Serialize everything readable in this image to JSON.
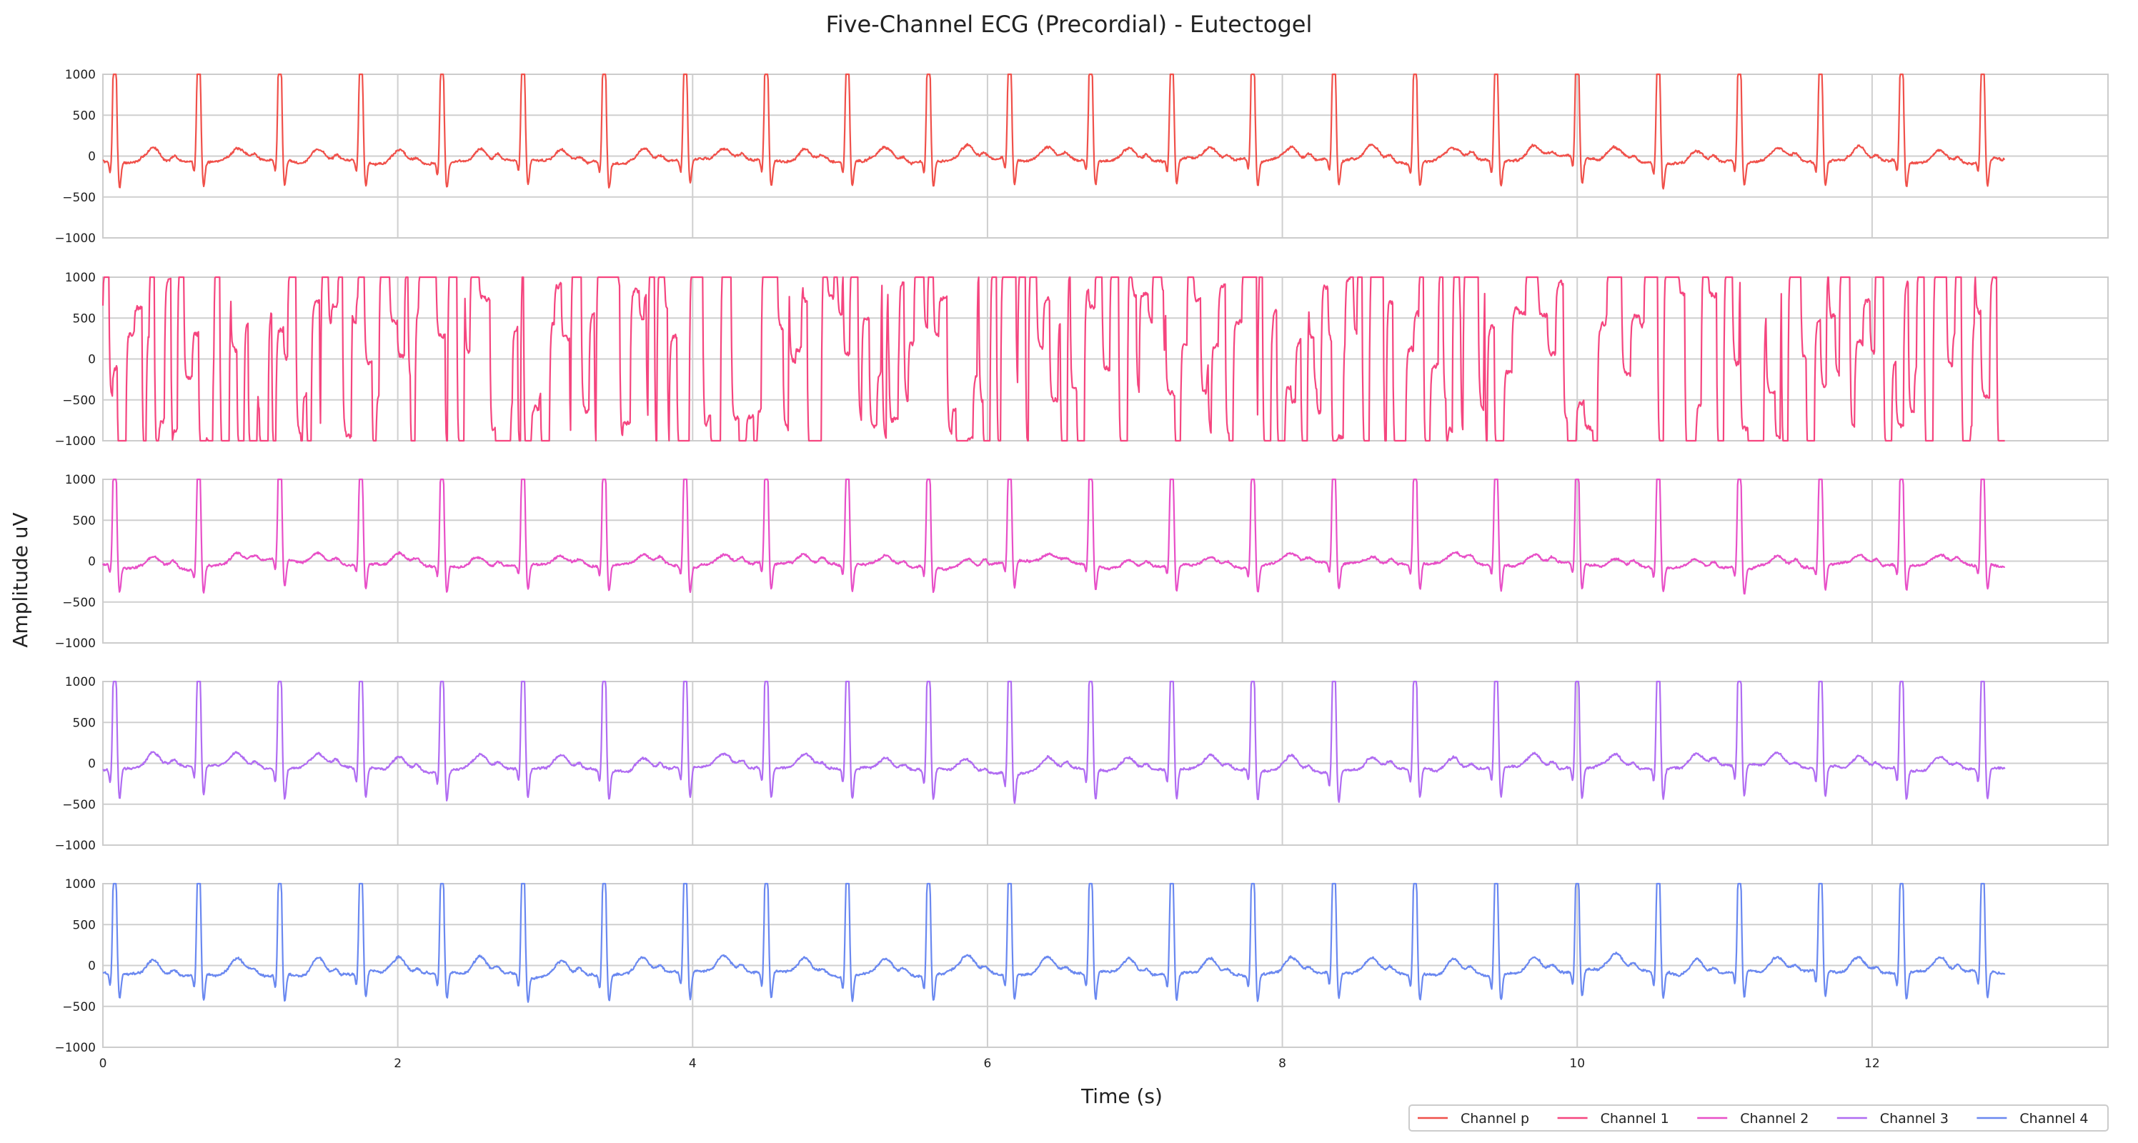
{
  "chart_data": {
    "type": "line",
    "title": "Five-Channel ECG (Precordial) - Eutectogel",
    "xlabel": "Time (s)",
    "ylabel": "Amplitude uV",
    "xlim": [
      0,
      13.6
    ],
    "ylim": [
      -1000,
      1000
    ],
    "x_ticks": [
      0,
      2,
      4,
      6,
      8,
      10,
      12
    ],
    "y_ticks": [
      1000,
      500,
      0,
      -500,
      -1000
    ],
    "x_tick_labels": [
      "0",
      "2",
      "4",
      "6",
      "8",
      "10",
      "12"
    ],
    "y_tick_labels": [
      "1000",
      "500",
      "0",
      "−500",
      "−1000"
    ],
    "grid": true,
    "legend_position": "bottom-right",
    "duration_s": 12.9,
    "beat_times_s": [
      0.08,
      0.65,
      1.2,
      1.75,
      2.3,
      2.85,
      3.4,
      3.95,
      4.5,
      5.05,
      5.6,
      6.15,
      6.7,
      7.25,
      7.8,
      8.35,
      8.9,
      9.45,
      10.0,
      10.55,
      11.1,
      11.65,
      12.2,
      12.75
    ],
    "series": [
      {
        "name": "Channel p",
        "color": "#f0504a",
        "r_peak_uV": 1000,
        "q_uV": -180,
        "s_uV": -320,
        "t_uV": 160,
        "baseline_uV": -60,
        "noise": "low"
      },
      {
        "name": "Channel 1",
        "color": "#f5457f",
        "r_peak_uV": 1000,
        "q_uV": -1000,
        "s_uV": -1000,
        "t_uV": 500,
        "baseline_uV": 0,
        "noise": "high, saturating"
      },
      {
        "name": "Channel 2",
        "color": "#e84fc7",
        "r_peak_uV": 1000,
        "q_uV": -150,
        "s_uV": -330,
        "t_uV": 110,
        "baseline_uV": -40,
        "noise": "low"
      },
      {
        "name": "Channel 3",
        "color": "#b06cf2",
        "r_peak_uV": 1000,
        "q_uV": -200,
        "s_uV": -380,
        "t_uV": 160,
        "baseline_uV": -70,
        "noise": "low"
      },
      {
        "name": "Channel 4",
        "color": "#6a88f0",
        "r_peak_uV": 1000,
        "q_uV": -200,
        "s_uV": -340,
        "t_uV": 190,
        "baseline_uV": -90,
        "noise": "low"
      }
    ]
  }
}
